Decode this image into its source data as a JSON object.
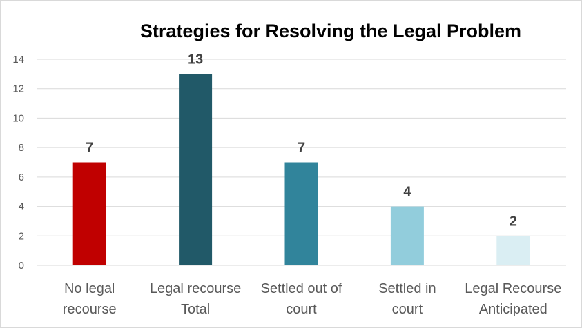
{
  "chart_data": {
    "type": "bar",
    "title": "Strategies for Resolving the Legal Problem",
    "xlabel": "",
    "ylabel": "",
    "ylim": [
      0,
      14
    ],
    "yticks": [
      0,
      2,
      4,
      6,
      8,
      10,
      12,
      14
    ],
    "grid": true,
    "legend": "none",
    "categories": [
      [
        "No legal",
        "recourse"
      ],
      [
        "Legal recourse",
        "Total"
      ],
      [
        "Settled out of",
        "court"
      ],
      [
        "Settled in",
        "court"
      ],
      [
        "Legal Recourse",
        "Anticipated"
      ]
    ],
    "values": [
      7,
      13,
      7,
      4,
      2
    ],
    "data_labels": [
      "7",
      "13",
      "7",
      "4",
      "2"
    ],
    "colors": [
      "#c00000",
      "#215968",
      "#31849b",
      "#92cddc",
      "#daeef3"
    ]
  }
}
